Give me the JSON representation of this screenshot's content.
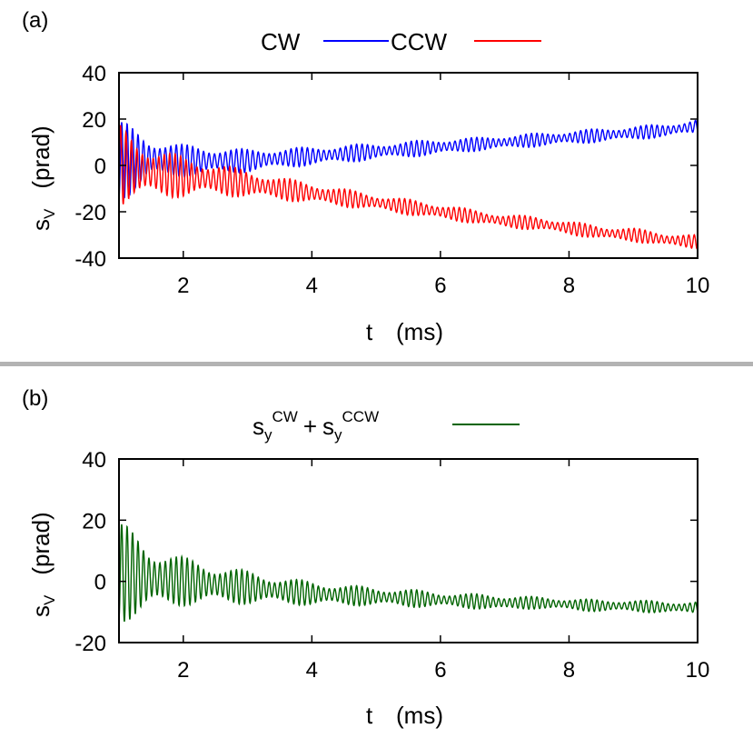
{
  "charts": {
    "a": {
      "panel_label": "(a)",
      "ylabel_main": "s",
      "ylabel_sub": "V",
      "ylabel_unit": "(prad)",
      "xlabel_main": "t",
      "xlabel_unit": "(ms)",
      "legend": [
        {
          "label": "CW",
          "color": "#0000ff"
        },
        {
          "label": "CCW",
          "color": "#ff0000"
        }
      ]
    },
    "b": {
      "panel_label": "(b)",
      "ylabel_main": "s",
      "ylabel_sub": "V",
      "ylabel_unit": "(prad)",
      "xlabel_main": "t",
      "xlabel_unit": "(ms)",
      "legend_parts": {
        "s1": "s",
        "sub1": "y",
        "sup1": "CW",
        "plus": "+",
        "s2": "s",
        "sub2": "y",
        "sup2": "CCW"
      },
      "legend_color": "#006400"
    }
  },
  "chart_data": [
    {
      "type": "line",
      "xlim": [
        1,
        10
      ],
      "ylim": [
        -40,
        40
      ],
      "xticks": [
        2,
        4,
        6,
        8,
        10
      ],
      "yticks": [
        -40,
        -20,
        0,
        20,
        40
      ],
      "grid": false,
      "legend_position": "top-center",
      "series": [
        {
          "name": "CW",
          "color": "#0000ff",
          "x": [
            1.0,
            1.5,
            2.0,
            2.5,
            3.0,
            3.5,
            4.0,
            4.5,
            5.0,
            5.5,
            6.0,
            6.5,
            7.0,
            7.5,
            8.0,
            8.5,
            9.0,
            9.5,
            10.0
          ],
          "y_mid": [
            2,
            3,
            2,
            2,
            2,
            3,
            4,
            5,
            6,
            7,
            8,
            9,
            10,
            11,
            12,
            13,
            14,
            15,
            17
          ],
          "y_amplitude": [
            18,
            9,
            7,
            6,
            5,
            4.5,
            4,
            4,
            3.5,
            3.5,
            3.5,
            3,
            3,
            3,
            3,
            3,
            3,
            3,
            3
          ]
        },
        {
          "name": "CCW",
          "color": "#ff0000",
          "x": [
            1.0,
            1.5,
            2.0,
            2.5,
            3.0,
            3.5,
            4.0,
            4.5,
            5.0,
            5.5,
            6.0,
            6.5,
            7.0,
            7.5,
            8.0,
            8.5,
            9.0,
            9.5,
            10.0
          ],
          "y_mid": [
            0,
            -3,
            -5,
            -6,
            -8,
            -10,
            -12,
            -14,
            -16,
            -18,
            -20,
            -22,
            -24,
            -25,
            -27,
            -29,
            -30,
            -32,
            -33
          ],
          "y_amplitude": [
            18,
            11,
            9,
            7,
            6,
            5,
            4.5,
            4,
            3.5,
            3.5,
            3.5,
            3,
            3,
            3,
            3,
            3,
            3,
            3,
            3
          ]
        }
      ]
    },
    {
      "type": "line",
      "xlim": [
        1,
        10
      ],
      "ylim": [
        -20,
        40
      ],
      "xticks": [
        2,
        4,
        6,
        8,
        10
      ],
      "yticks": [
        -20,
        0,
        20,
        40
      ],
      "grid": false,
      "legend_position": "top-center",
      "series": [
        {
          "name": "sy CW + sy CCW",
          "color": "#006400",
          "x": [
            1.0,
            1.5,
            2.0,
            2.5,
            3.0,
            3.5,
            4.0,
            4.5,
            5.0,
            5.5,
            6.0,
            6.5,
            7.0,
            7.5,
            8.0,
            8.5,
            9.0,
            9.5,
            10.0
          ],
          "y_mid": [
            3,
            1,
            0,
            -1,
            -2,
            -3,
            -4,
            -4.5,
            -5,
            -5.5,
            -6,
            -6.5,
            -7,
            -7,
            -7.5,
            -8,
            -8,
            -8.5,
            -8.5
          ],
          "y_amplitude": [
            17,
            11,
            8,
            6.5,
            5.5,
            4.5,
            4,
            3.5,
            3,
            3,
            2.5,
            2.5,
            2.5,
            2,
            2,
            2,
            2,
            2,
            2
          ]
        }
      ]
    }
  ]
}
